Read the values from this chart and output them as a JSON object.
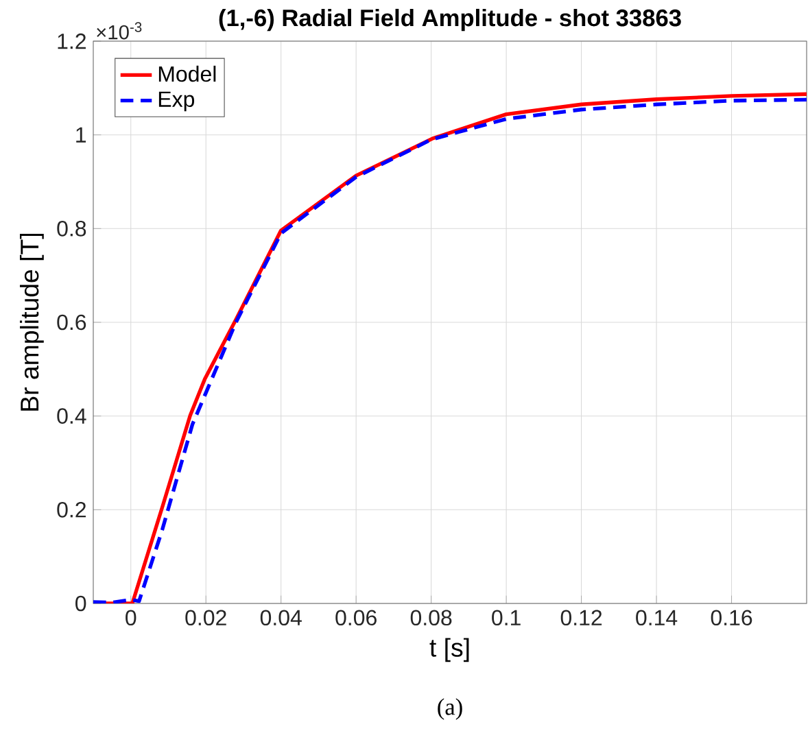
{
  "chart_data": {
    "type": "line",
    "title": "(1,-6) Radial Field Amplitude - shot 33863",
    "xlabel": "t [s]",
    "ylabel": "Br amplitude [T]",
    "annotations": [
      "×10$^{-3}$",
      "(a)"
    ],
    "xlim": [
      -0.01,
      0.18
    ],
    "ylim": [
      0,
      1.2
    ],
    "xticks": [
      0,
      0.02,
      0.04,
      0.06,
      0.08,
      0.1,
      0.12,
      0.14,
      0.16
    ],
    "yticks": [
      0,
      0.2,
      0.4,
      0.6,
      0.8,
      1,
      1.2
    ],
    "grid": true,
    "legend": "top left",
    "series": [
      {
        "name": "Model",
        "color": "#ff0000",
        "line_style": "solid",
        "x": [
          -0.01,
          0.0004,
          0.0084,
          0.0158,
          0.0197,
          0.028,
          0.04,
          0.06,
          0.0806,
          0.1,
          0.12,
          0.14,
          0.16,
          0.18
        ],
        "values": [
          0,
          0,
          0.206,
          0.401,
          0.479,
          0.606,
          0.796,
          0.913,
          0.993,
          1.044,
          1.065,
          1.076,
          1.083,
          1.087
        ]
      },
      {
        "name": "Exp",
        "color": "#0000ff",
        "line_style": "dashed",
        "x": [
          -0.01,
          -0.005,
          0,
          0.0022,
          0.0084,
          0.0164,
          0.028,
          0.04,
          0.06,
          0.08,
          0.1,
          0.12,
          0.14,
          0.16,
          0.18
        ],
        "values": [
          0.003,
          0.002,
          0.008,
          0.005,
          0.158,
          0.382,
          0.6,
          0.79,
          0.91,
          0.99,
          1.034,
          1.054,
          1.065,
          1.073,
          1.075
        ]
      }
    ]
  }
}
